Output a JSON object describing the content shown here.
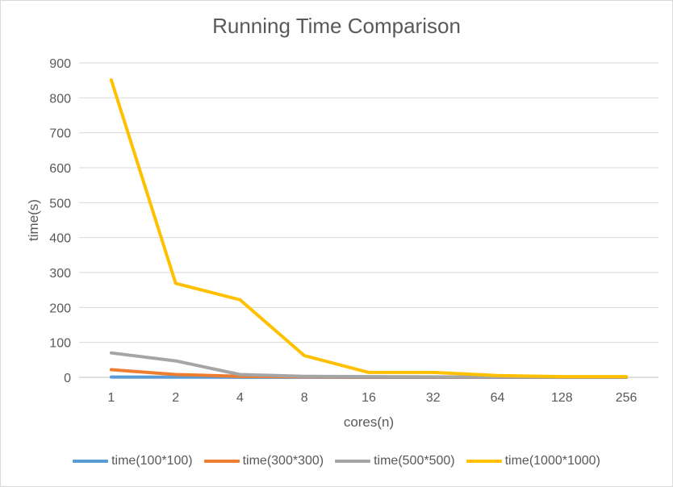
{
  "chart_data": {
    "type": "line",
    "title": "Running Time Comparison",
    "xlabel": "cores(n)",
    "ylabel": "time(s)",
    "categories": [
      "1",
      "2",
      "4",
      "8",
      "16",
      "32",
      "64",
      "128",
      "256"
    ],
    "ylim": [
      0,
      900
    ],
    "yticks": [
      "0",
      "100",
      "200",
      "300",
      "400",
      "500",
      "600",
      "700",
      "800",
      "900"
    ],
    "grid": true,
    "legend_position": "bottom",
    "series": [
      {
        "name": "time(100*100)",
        "color": "#5b9bd5",
        "values": [
          1,
          0.6,
          0.3,
          0.2,
          0.1,
          0.1,
          0.1,
          0.1,
          0.1
        ]
      },
      {
        "name": "time(300*300)",
        "color": "#ed7d31",
        "values": [
          22,
          8,
          3,
          1.5,
          1,
          0.8,
          0.6,
          0.5,
          0.5
        ]
      },
      {
        "name": "time(500*500)",
        "color": "#a5a5a5",
        "values": [
          70,
          47,
          8,
          3,
          2,
          1.5,
          1,
          1,
          1
        ]
      },
      {
        "name": "time(1000*1000)",
        "color": "#ffc000",
        "values": [
          851,
          269,
          222,
          62,
          14,
          14,
          5,
          2,
          2
        ]
      }
    ]
  }
}
